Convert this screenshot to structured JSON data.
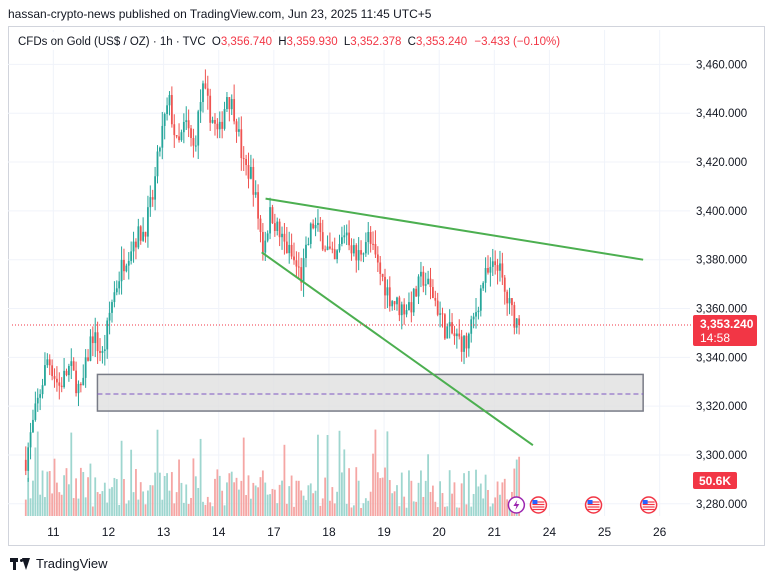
{
  "header": {
    "publisher": "hassan-crypto-news published on TradingView.com, Jun 23, 2025 11:45 UTC+5"
  },
  "footer": {
    "brand": "TradingView"
  },
  "chart_data": {
    "type": "candlestick",
    "instrument": "CFDs on Gold (US$ / OZ) · 1h · TVC",
    "ohlc": {
      "O": "3,356.740",
      "H": "3,359.930",
      "L": "3,352.378",
      "C": "3,353.240",
      "change": "−3.433 (−0.10%)",
      "labels": {
        "O": "O",
        "H": "H",
        "L": "L",
        "C": "C"
      }
    },
    "y_range": [
      3275,
      3470
    ],
    "y_ticks": [
      {
        "v": 3460,
        "label": "3,460.000"
      },
      {
        "v": 3440,
        "label": "3,440.000"
      },
      {
        "v": 3420,
        "label": "3,420.000"
      },
      {
        "v": 3400,
        "label": "3,400.000"
      },
      {
        "v": 3380,
        "label": "3,380.000"
      },
      {
        "v": 3360,
        "label": "3,360.000"
      },
      {
        "v": 3340,
        "label": "3,340.000"
      },
      {
        "v": 3320,
        "label": "3,320.000"
      },
      {
        "v": 3300,
        "label": "3,300.000"
      },
      {
        "v": 3280,
        "label": "3,280.000"
      }
    ],
    "x_ticks": [
      {
        "slot": 0.5,
        "label": "11"
      },
      {
        "slot": 1.5,
        "label": "12"
      },
      {
        "slot": 2.5,
        "label": "13"
      },
      {
        "slot": 3.5,
        "label": "14"
      },
      {
        "slot": 4.5,
        "label": "17"
      },
      {
        "slot": 5.5,
        "label": "18"
      },
      {
        "slot": 6.5,
        "label": "19"
      },
      {
        "slot": 7.5,
        "label": "20"
      },
      {
        "slot": 8.5,
        "label": "21"
      },
      {
        "slot": 9.5,
        "label": "24"
      },
      {
        "slot": 10.5,
        "label": "25"
      },
      {
        "slot": 11.5,
        "label": "26"
      }
    ],
    "x_range": [
      -0.25,
      12.05
    ],
    "bars_per_slot": 23,
    "price_path": [
      [
        0,
        3298
      ],
      [
        0.18,
        3318
      ],
      [
        0.4,
        3340
      ],
      [
        0.6,
        3328
      ],
      [
        0.8,
        3336
      ],
      [
        1.0,
        3325
      ],
      [
        1.2,
        3350
      ],
      [
        1.4,
        3340
      ],
      [
        1.55,
        3362
      ],
      [
        1.75,
        3378
      ],
      [
        1.95,
        3388
      ],
      [
        2.15,
        3392
      ],
      [
        2.3,
        3405
      ],
      [
        2.45,
        3430
      ],
      [
        2.6,
        3445
      ],
      [
        2.75,
        3425
      ],
      [
        2.9,
        3436
      ],
      [
        3.05,
        3425
      ],
      [
        3.2,
        3450
      ],
      [
        3.35,
        3440
      ],
      [
        3.5,
        3430
      ],
      [
        3.65,
        3448
      ],
      [
        3.8,
        3440
      ],
      [
        3.95,
        3418
      ],
      [
        4.1,
        3415
      ],
      [
        4.3,
        3385
      ],
      [
        4.45,
        3400
      ],
      [
        4.6,
        3390
      ],
      [
        4.8,
        3382
      ],
      [
        5.0,
        3373
      ],
      [
        5.2,
        3395
      ],
      [
        5.4,
        3388
      ],
      [
        5.6,
        3378
      ],
      [
        5.8,
        3393
      ],
      [
        6.0,
        3380
      ],
      [
        6.2,
        3390
      ],
      [
        6.4,
        3376
      ],
      [
        6.6,
        3365
      ],
      [
        6.8,
        3360
      ],
      [
        7.0,
        3362
      ],
      [
        7.2,
        3373
      ],
      [
        7.4,
        3365
      ],
      [
        7.6,
        3352
      ],
      [
        7.8,
        3348
      ],
      [
        8.0,
        3345
      ],
      [
        8.2,
        3362
      ],
      [
        8.3,
        3372
      ],
      [
        8.45,
        3375
      ],
      [
        8.55,
        3380
      ],
      [
        8.7,
        3365
      ],
      [
        8.85,
        3357
      ],
      [
        8.95,
        3353
      ]
    ],
    "falling_wedge": {
      "upper": [
        [
          4.35,
          3405
        ],
        [
          11.2,
          3380
        ]
      ],
      "lower": [
        [
          4.28,
          3383
        ],
        [
          9.2,
          3304
        ]
      ]
    },
    "support_zone": {
      "top": 3333,
      "bottom": 3318,
      "mid": 3325,
      "x_from": 1.3,
      "x_to": 11.2
    },
    "last_price": {
      "value": 3353.24,
      "label": "3,353.240",
      "countdown": "14:58"
    },
    "volume_label": "50.6K",
    "colors": {
      "up": "#26a69a",
      "down": "#ef5350",
      "vol_up": "#9ed6cf",
      "vol_down": "#f5a6a4",
      "wedge": "#4caf50",
      "zone_fill": "#e0e0e0",
      "zone_stroke": "#787b86",
      "zone_mid": "#7e57c2",
      "price_tag": "#f23645",
      "grid": "#f0f3fa",
      "axis_text": "#131722"
    }
  }
}
